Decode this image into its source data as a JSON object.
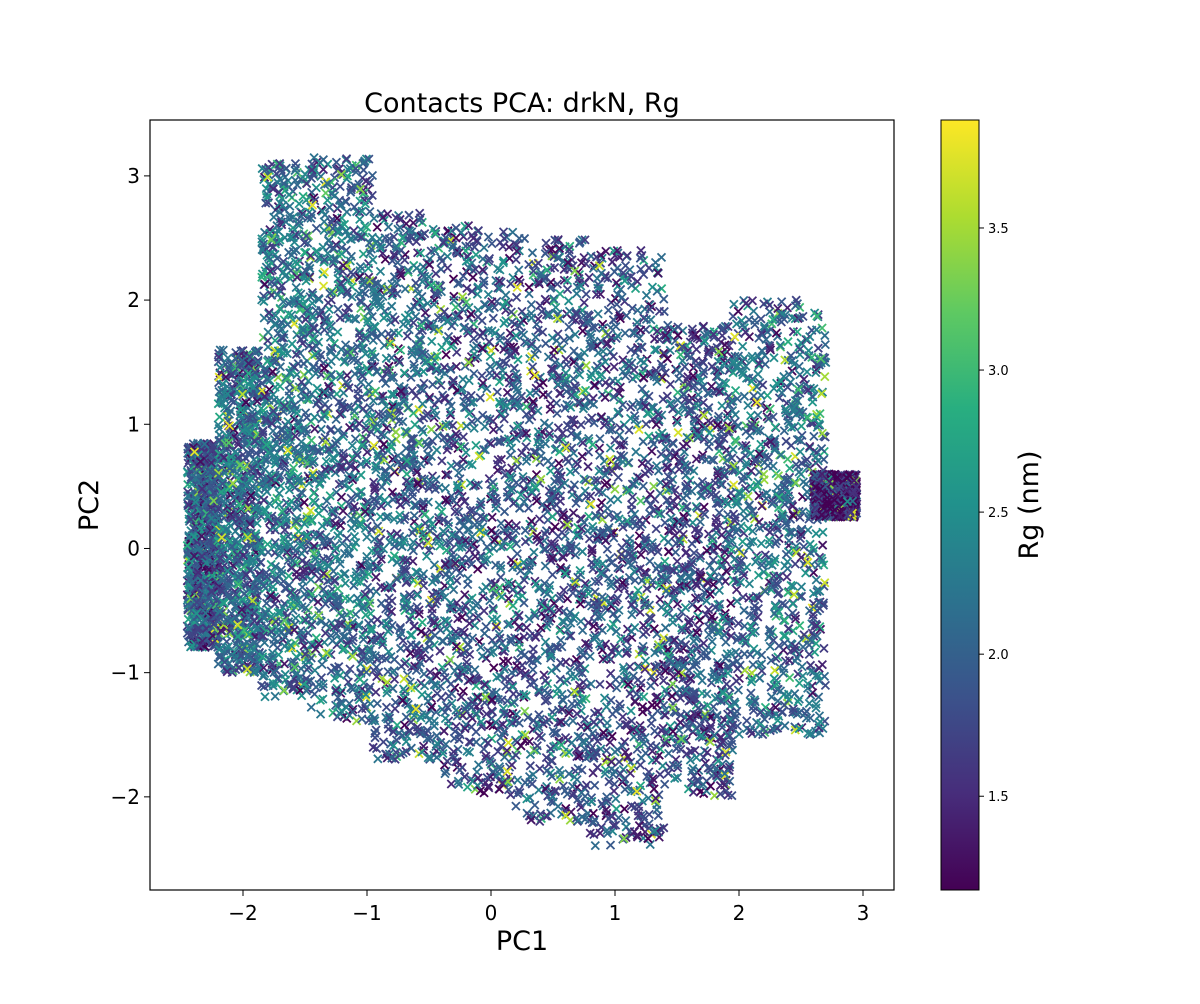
{
  "chart_data": {
    "type": "scatter",
    "title": "Contacts PCA: drkN, Rg",
    "xlabel": "PC1",
    "ylabel": "PC2",
    "xlim": [
      -2.75,
      3.25
    ],
    "ylim": [
      -2.75,
      3.45
    ],
    "x_ticks": [
      {
        "value": -2,
        "label": "−2"
      },
      {
        "value": -1,
        "label": "−1"
      },
      {
        "value": 0,
        "label": "0"
      },
      {
        "value": 1,
        "label": "1"
      },
      {
        "value": 2,
        "label": "2"
      },
      {
        "value": 3,
        "label": "3"
      }
    ],
    "y_ticks": [
      {
        "value": -2,
        "label": "−2"
      },
      {
        "value": -1,
        "label": "−1"
      },
      {
        "value": 0,
        "label": "0"
      },
      {
        "value": 1,
        "label": "1"
      },
      {
        "value": 2,
        "label": "2"
      },
      {
        "value": 3,
        "label": "3"
      }
    ],
    "marker": "x",
    "grid": false,
    "colorbar": {
      "label": "Rg (nm)",
      "colormap": "viridis",
      "range": [
        1.17,
        3.88
      ],
      "ticks": [
        {
          "value": 1.5,
          "label": "1.5"
        },
        {
          "value": 2.0,
          "label": "2.0"
        },
        {
          "value": 2.5,
          "label": "2.5"
        },
        {
          "value": 3.0,
          "label": "3.0"
        },
        {
          "value": 3.5,
          "label": "3.5"
        }
      ]
    },
    "point_regions": [
      {
        "x": [
          -2.45,
          -2.2
        ],
        "y": [
          -0.8,
          0.85
        ],
        "rg_mean": 1.95
      },
      {
        "x": [
          -2.2,
          -1.85
        ],
        "y": [
          -1.0,
          1.6
        ],
        "rg_mean": 2.05
      },
      {
        "x": [
          -1.85,
          -1.45
        ],
        "y": [
          -1.2,
          3.1
        ],
        "rg_mean": 2.15
      },
      {
        "x": [
          -1.45,
          -0.95
        ],
        "y": [
          -1.4,
          3.15
        ],
        "rg_mean": 2.1
      },
      {
        "x": [
          -0.95,
          -0.4
        ],
        "y": [
          -1.7,
          2.7
        ],
        "rg_mean": 1.95
      },
      {
        "x": [
          -0.4,
          0.2
        ],
        "y": [
          -2.0,
          2.6
        ],
        "rg_mean": 1.9
      },
      {
        "x": [
          0.2,
          0.8
        ],
        "y": [
          -2.2,
          2.5
        ],
        "rg_mean": 1.9
      },
      {
        "x": [
          0.8,
          1.4
        ],
        "y": [
          -2.4,
          2.4
        ],
        "rg_mean": 1.85
      },
      {
        "x": [
          1.4,
          1.95
        ],
        "y": [
          -2.0,
          1.8
        ],
        "rg_mean": 1.85
      },
      {
        "x": [
          1.95,
          2.7
        ],
        "y": [
          -1.5,
          2.0
        ],
        "rg_mean": 2.05
      },
      {
        "x": [
          2.6,
          2.95
        ],
        "y": [
          0.25,
          0.6
        ],
        "rg_mean": 1.45
      }
    ],
    "point_count_approx": 9000
  }
}
